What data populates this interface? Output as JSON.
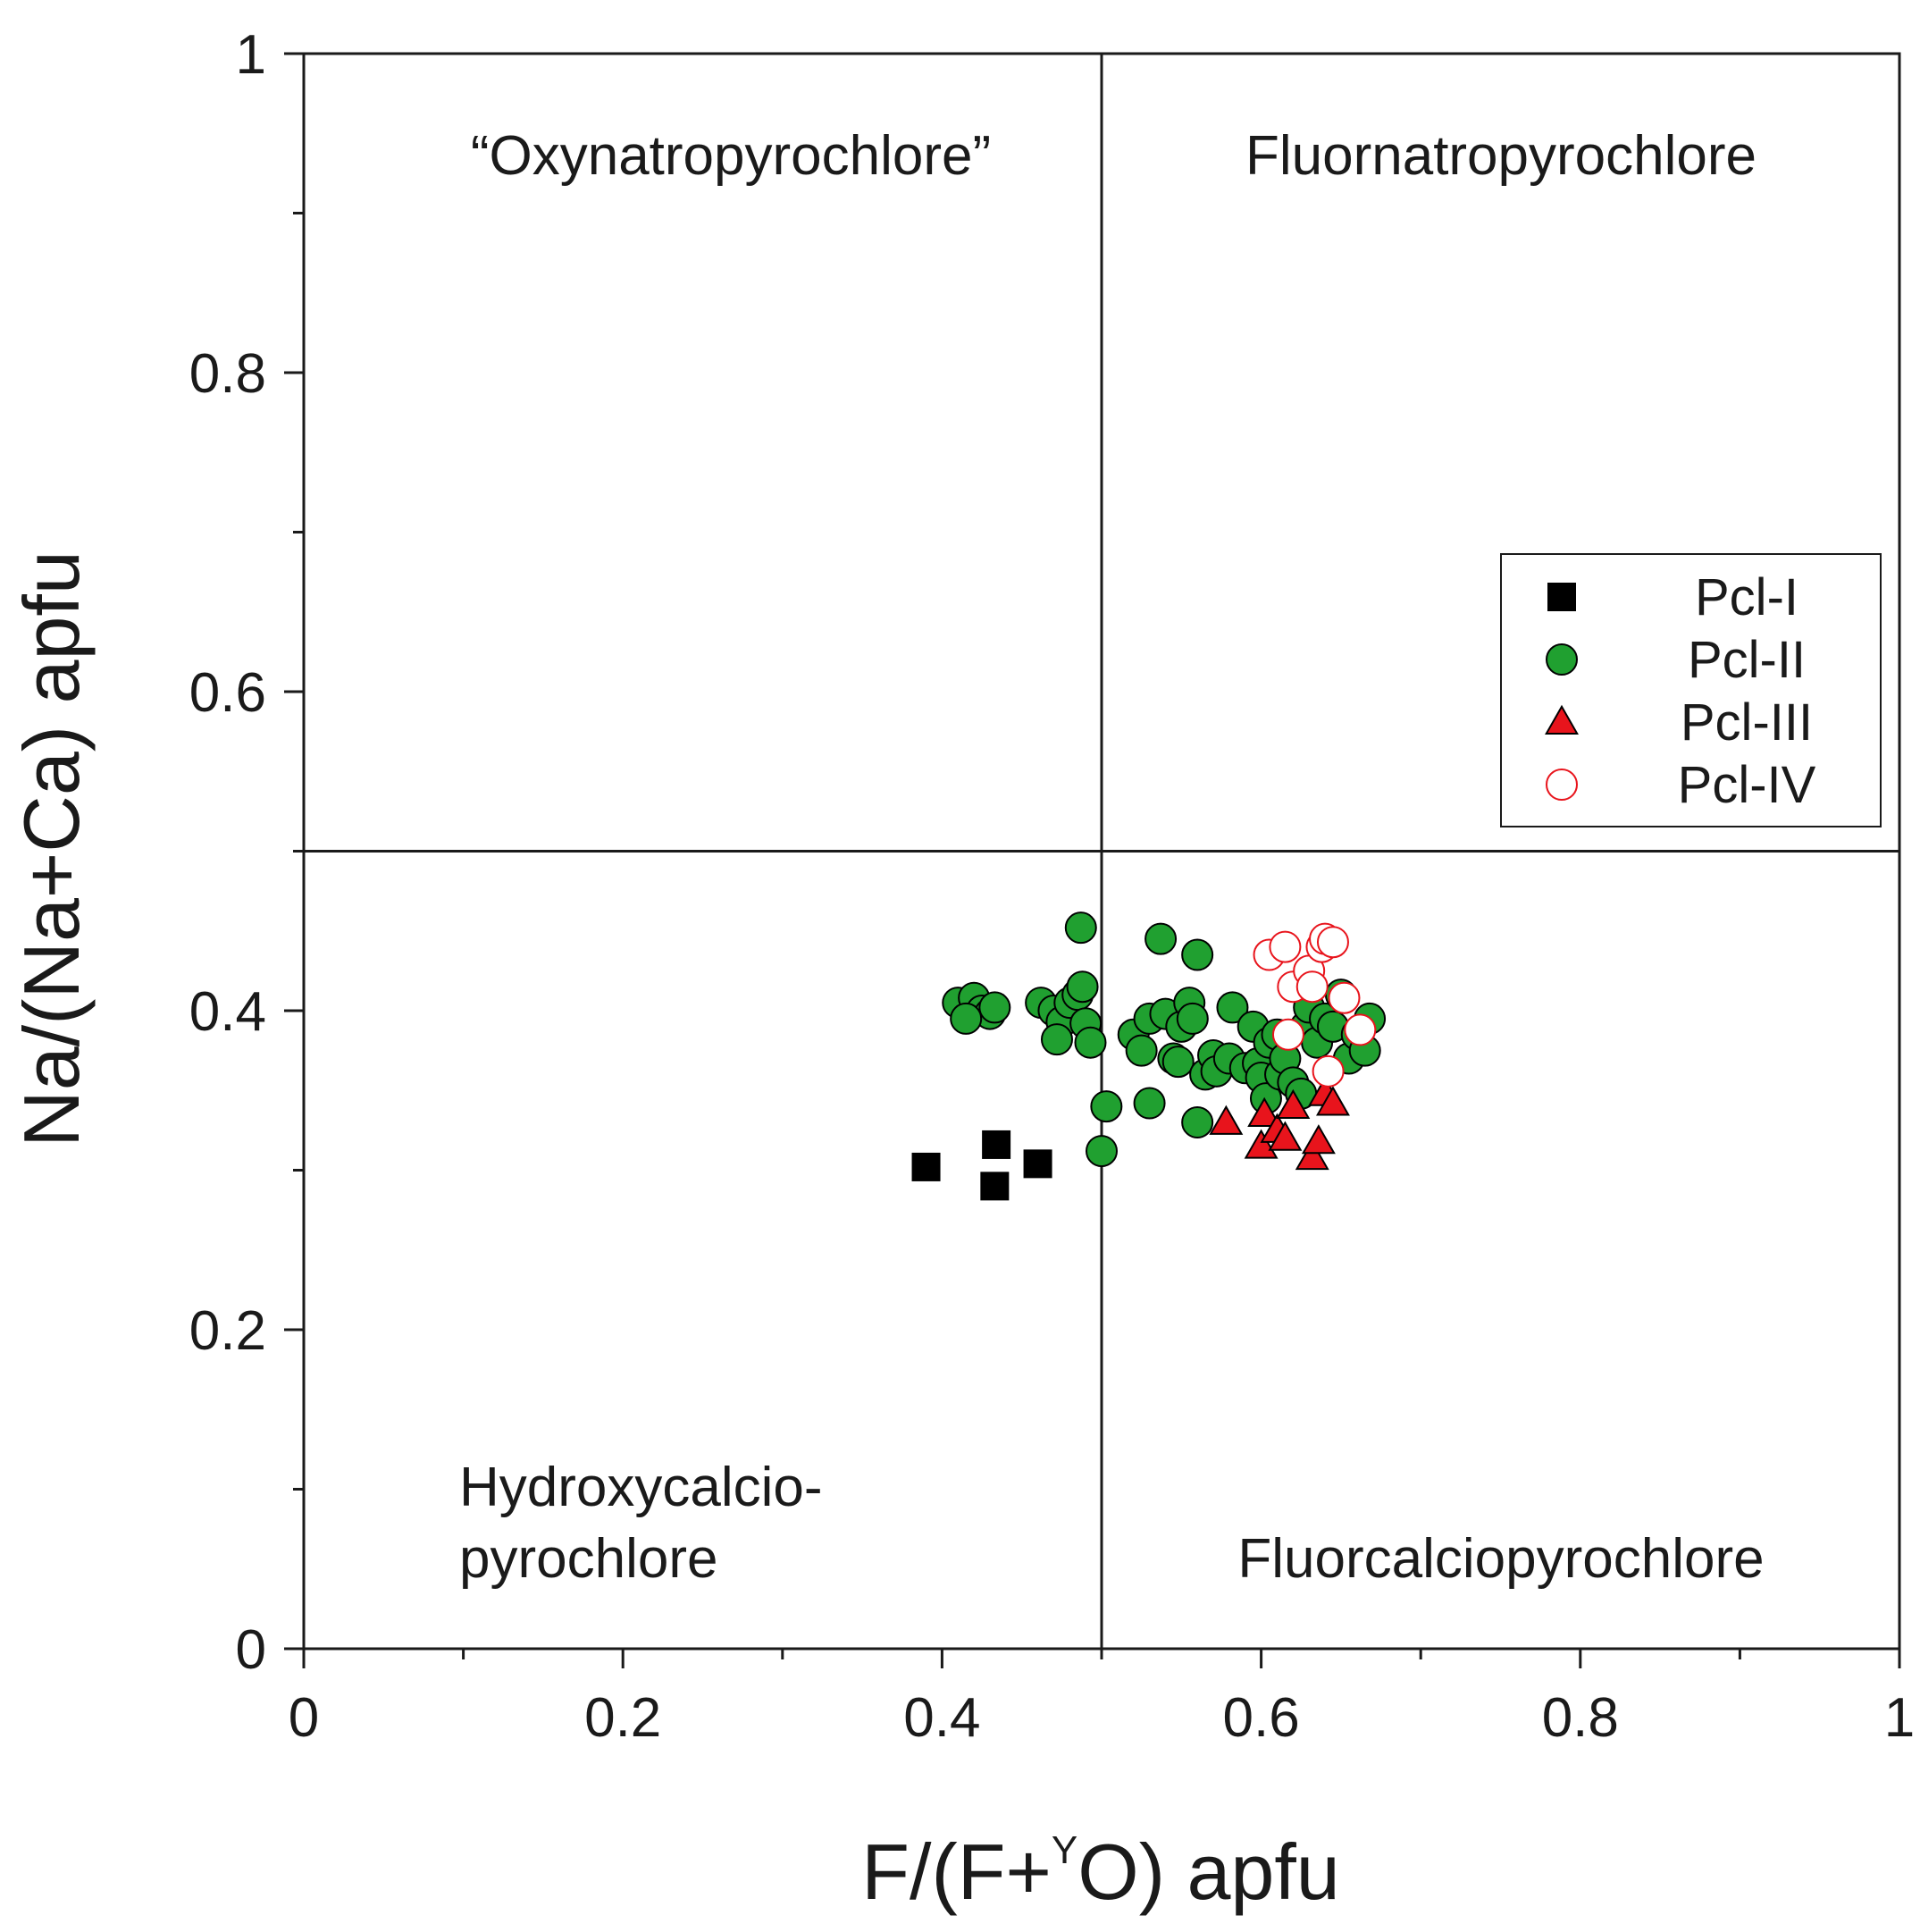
{
  "chart_data": {
    "type": "scatter",
    "title": "",
    "xlabel_parts": [
      "F/(F+",
      "Y",
      "O) apfu"
    ],
    "ylabel": "Na/(Na+Ca) apfu",
    "xlim": [
      0,
      1
    ],
    "ylim": [
      0,
      1
    ],
    "x_ticks": [
      0,
      0.2,
      0.4,
      0.6,
      0.8,
      1
    ],
    "y_ticks": [
      0,
      0.2,
      0.4,
      0.6,
      0.8,
      1
    ],
    "x_tick_labels": [
      "0",
      "0.2",
      "0.4",
      "0.6",
      "0.8",
      "1"
    ],
    "y_tick_labels": [
      "0",
      "0.2",
      "0.4",
      "0.6",
      "0.8",
      "1"
    ],
    "grid": false,
    "legend_position": "right, middle",
    "field_boundaries": {
      "x": 0.5,
      "y": 0.5
    },
    "fields": [
      {
        "lines": [
          "“Oxynatropyrochlore”"
        ]
      },
      {
        "lines": [
          "Fluornatropyrochlore"
        ]
      },
      {
        "lines": [
          "Hydroxycalcio-",
          "pyrochlore"
        ]
      },
      {
        "lines": [
          "Fluorcalciopyrochlore"
        ]
      }
    ],
    "series": [
      {
        "name": "Pcl-I",
        "marker": "square",
        "color": "#000000",
        "filled": true,
        "points": [
          [
            0.39,
            0.302
          ],
          [
            0.434,
            0.316
          ],
          [
            0.433,
            0.29
          ],
          [
            0.46,
            0.304
          ]
        ]
      },
      {
        "name": "Pcl-II",
        "marker": "circle",
        "color": "#20a030",
        "filled": true,
        "points": [
          [
            0.41,
            0.405
          ],
          [
            0.42,
            0.408
          ],
          [
            0.425,
            0.4
          ],
          [
            0.43,
            0.398
          ],
          [
            0.433,
            0.402
          ],
          [
            0.415,
            0.395
          ],
          [
            0.462,
            0.405
          ],
          [
            0.47,
            0.4
          ],
          [
            0.475,
            0.393
          ],
          [
            0.472,
            0.382
          ],
          [
            0.48,
            0.405
          ],
          [
            0.485,
            0.41
          ],
          [
            0.488,
            0.415
          ],
          [
            0.49,
            0.392
          ],
          [
            0.493,
            0.38
          ],
          [
            0.487,
            0.452
          ],
          [
            0.5,
            0.312
          ],
          [
            0.503,
            0.34
          ],
          [
            0.52,
            0.385
          ],
          [
            0.525,
            0.375
          ],
          [
            0.53,
            0.395
          ],
          [
            0.53,
            0.342
          ],
          [
            0.537,
            0.445
          ],
          [
            0.54,
            0.398
          ],
          [
            0.545,
            0.37
          ],
          [
            0.548,
            0.368
          ],
          [
            0.55,
            0.39
          ],
          [
            0.555,
            0.405
          ],
          [
            0.557,
            0.395
          ],
          [
            0.56,
            0.435
          ],
          [
            0.56,
            0.33
          ],
          [
            0.565,
            0.36
          ],
          [
            0.57,
            0.372
          ],
          [
            0.572,
            0.362
          ],
          [
            0.58,
            0.37
          ],
          [
            0.582,
            0.402
          ],
          [
            0.59,
            0.364
          ],
          [
            0.595,
            0.39
          ],
          [
            0.598,
            0.367
          ],
          [
            0.6,
            0.358
          ],
          [
            0.603,
            0.345
          ],
          [
            0.605,
            0.38
          ],
          [
            0.61,
            0.385
          ],
          [
            0.612,
            0.36
          ],
          [
            0.615,
            0.37
          ],
          [
            0.62,
            0.355
          ],
          [
            0.625,
            0.348
          ],
          [
            0.628,
            0.39
          ],
          [
            0.63,
            0.402
          ],
          [
            0.635,
            0.38
          ],
          [
            0.64,
            0.395
          ],
          [
            0.645,
            0.39
          ],
          [
            0.65,
            0.41
          ],
          [
            0.655,
            0.37
          ],
          [
            0.66,
            0.385
          ],
          [
            0.665,
            0.375
          ],
          [
            0.668,
            0.395
          ]
        ]
      },
      {
        "name": "Pcl-III",
        "marker": "triangle",
        "color": "#e8141c",
        "filled": true,
        "points": [
          [
            0.578,
            0.33
          ],
          [
            0.6,
            0.315
          ],
          [
            0.602,
            0.335
          ],
          [
            0.61,
            0.325
          ],
          [
            0.615,
            0.32
          ],
          [
            0.62,
            0.34
          ],
          [
            0.632,
            0.308
          ],
          [
            0.636,
            0.318
          ],
          [
            0.64,
            0.348
          ],
          [
            0.645,
            0.342
          ]
        ]
      },
      {
        "name": "Pcl-IV",
        "marker": "circle",
        "color": "#e8141c",
        "filled": false,
        "points": [
          [
            0.605,
            0.435
          ],
          [
            0.615,
            0.44
          ],
          [
            0.62,
            0.415
          ],
          [
            0.63,
            0.425
          ],
          [
            0.632,
            0.415
          ],
          [
            0.638,
            0.44
          ],
          [
            0.64,
            0.445
          ],
          [
            0.645,
            0.443
          ],
          [
            0.617,
            0.385
          ],
          [
            0.642,
            0.362
          ],
          [
            0.652,
            0.408
          ],
          [
            0.662,
            0.388
          ]
        ]
      }
    ]
  }
}
